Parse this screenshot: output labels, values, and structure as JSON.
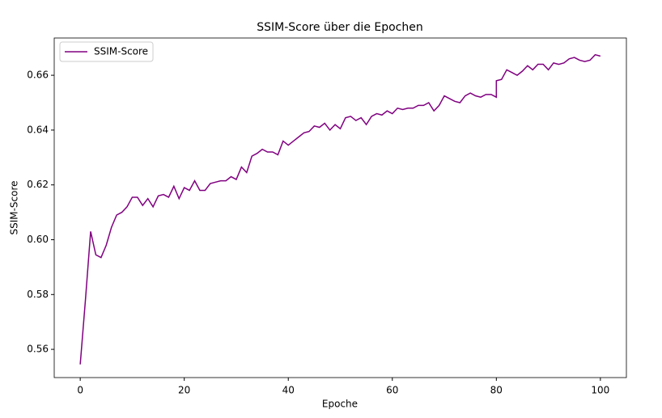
{
  "chart_data": {
    "type": "line",
    "title": "SSIM-Score über die Epochen",
    "xlabel": "Epoche",
    "ylabel": "SSIM-Score",
    "x": [
      0,
      1,
      2,
      3,
      4,
      5,
      6,
      7,
      8,
      9,
      10,
      11,
      12,
      13,
      14,
      15,
      16,
      17,
      18,
      19,
      20,
      21,
      22,
      23,
      24,
      25,
      26,
      27,
      28,
      29,
      30,
      31,
      32,
      33,
      34,
      35,
      36,
      37,
      38,
      39,
      40,
      41,
      42,
      43,
      44,
      45,
      46,
      47,
      48,
      49,
      50,
      51,
      52,
      53,
      54,
      55,
      56,
      57,
      58,
      59,
      60,
      61,
      62,
      63,
      64,
      65,
      66,
      67,
      68,
      69,
      70,
      71,
      72,
      73,
      74,
      75,
      76,
      77,
      78,
      79,
      80,
      80,
      81,
      82,
      83,
      84,
      85,
      86,
      87,
      88,
      89,
      90,
      91,
      92,
      93,
      94,
      95,
      96,
      97,
      98,
      99,
      100
    ],
    "series": [
      {
        "name": "SSIM-Score",
        "color": "#800080",
        "values": [
          0.5545,
          0.578,
          0.603,
          0.5945,
          0.5935,
          0.598,
          0.6045,
          0.609,
          0.61,
          0.612,
          0.6155,
          0.6155,
          0.6125,
          0.615,
          0.612,
          0.616,
          0.6165,
          0.6155,
          0.6195,
          0.615,
          0.619,
          0.618,
          0.6215,
          0.618,
          0.618,
          0.6205,
          0.621,
          0.6215,
          0.6215,
          0.623,
          0.622,
          0.6265,
          0.6245,
          0.6305,
          0.6315,
          0.633,
          0.632,
          0.632,
          0.631,
          0.636,
          0.6345,
          0.636,
          0.6375,
          0.639,
          0.6395,
          0.6415,
          0.641,
          0.6425,
          0.64,
          0.642,
          0.6405,
          0.6445,
          0.645,
          0.6435,
          0.6445,
          0.642,
          0.645,
          0.646,
          0.6455,
          0.647,
          0.646,
          0.648,
          0.6475,
          0.648,
          0.648,
          0.649,
          0.649,
          0.65,
          0.647,
          0.649,
          0.6525,
          0.6515,
          0.6505,
          0.65,
          0.6525,
          0.6535,
          0.6525,
          0.652,
          0.653,
          0.653,
          0.652,
          0.658,
          0.6585,
          0.662,
          0.661,
          0.66,
          0.6615,
          0.6635,
          0.662,
          0.664,
          0.664,
          0.662,
          0.6645,
          0.664,
          0.6645,
          0.666,
          0.6665,
          0.6655,
          0.665,
          0.6655,
          0.6675,
          0.667
        ]
      }
    ],
    "xlim": [
      -5,
      105
    ],
    "ylim": [
      0.5497,
      0.6736
    ],
    "xticks": [
      0,
      20,
      40,
      60,
      80,
      100
    ],
    "yticks": [
      0.56,
      0.58,
      {
        "value": 0.6,
        "label": "0.60"
      },
      0.62,
      0.64,
      0.66
    ],
    "legend": "upper left"
  }
}
